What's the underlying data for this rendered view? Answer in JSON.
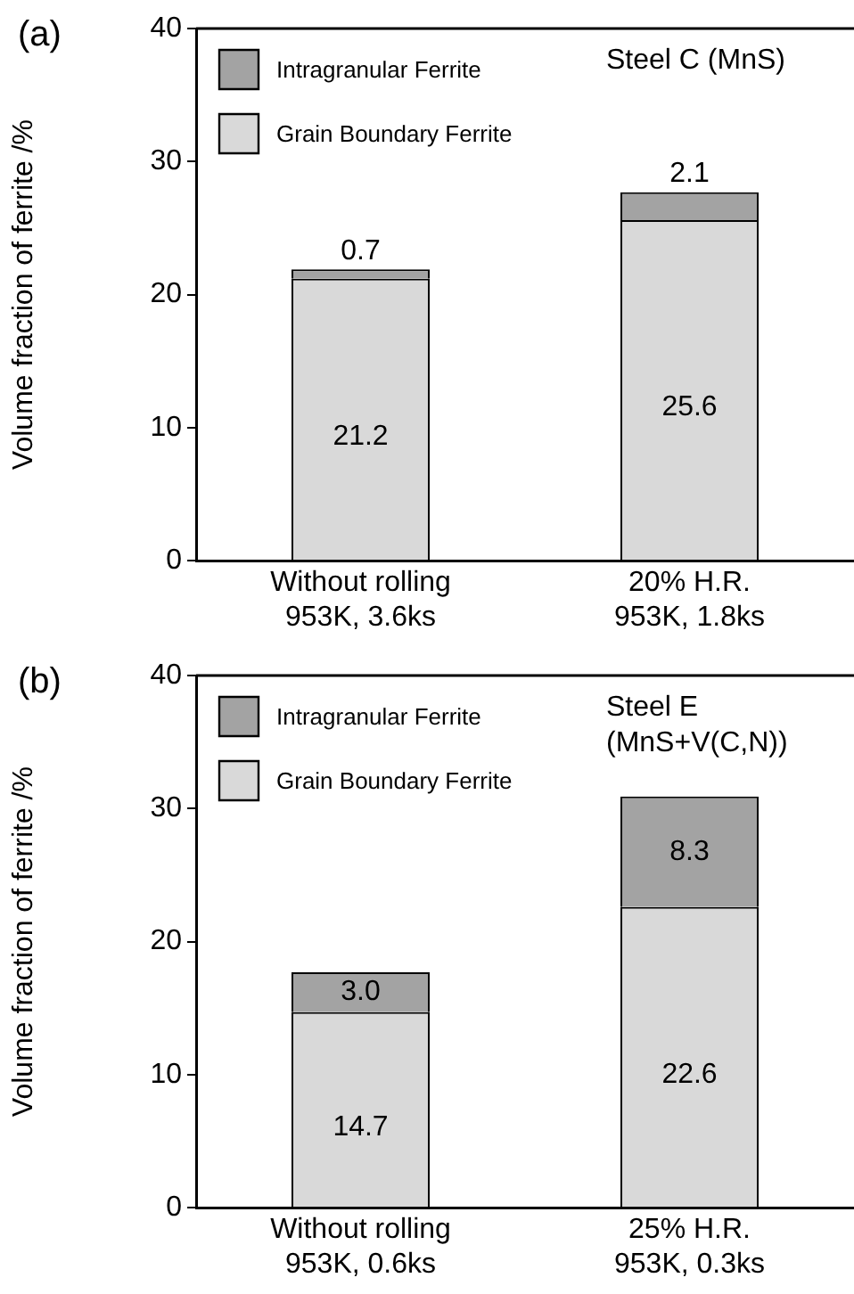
{
  "chart_data": [
    {
      "type": "bar",
      "title": "(a)",
      "ylabel": "Volume fraction of ferrite /%",
      "categories": [
        "Without rolling\n953K, 3.6ks",
        "20% H.R.\n953K, 1.8ks"
      ],
      "stacked": true,
      "series": [
        {
          "name": "Grain Boundary Ferrite",
          "color": "#d9d9d9",
          "values": [
            21.2,
            25.6
          ]
        },
        {
          "name": "Intragranular Ferrite",
          "color": "#a3a3a3",
          "values": [
            0.7,
            2.1
          ]
        }
      ],
      "ylim": [
        0,
        40
      ],
      "yticks": [
        0,
        10,
        20,
        30,
        40
      ],
      "grid": false,
      "legend": "top left",
      "data_labels": true,
      "annotations": [
        "Steel C (MnS)"
      ]
    },
    {
      "type": "bar",
      "title": "(b)",
      "ylabel": "Volume fraction of ferrite /%",
      "categories": [
        "Without rolling\n953K, 0.6ks",
        "25% H.R.\n953K, 0.3ks"
      ],
      "stacked": true,
      "series": [
        {
          "name": "Grain Boundary Ferrite",
          "color": "#d9d9d9",
          "values": [
            14.7,
            22.6
          ],
          "value_labels": [
            "14.7",
            "22.6"
          ]
        },
        {
          "name": "Intragranular Ferrite",
          "color": "#a3a3a3",
          "values": [
            3.0,
            8.3
          ],
          "value_labels": [
            "3.0",
            "8.3"
          ]
        }
      ],
      "ylim": [
        0,
        40
      ],
      "yticks": [
        0,
        10,
        20,
        30,
        40
      ],
      "grid": false,
      "legend": "top left",
      "annotations": [
        "Steel E\n(MnS+V(C,N))"
      ]
    }
  ]
}
